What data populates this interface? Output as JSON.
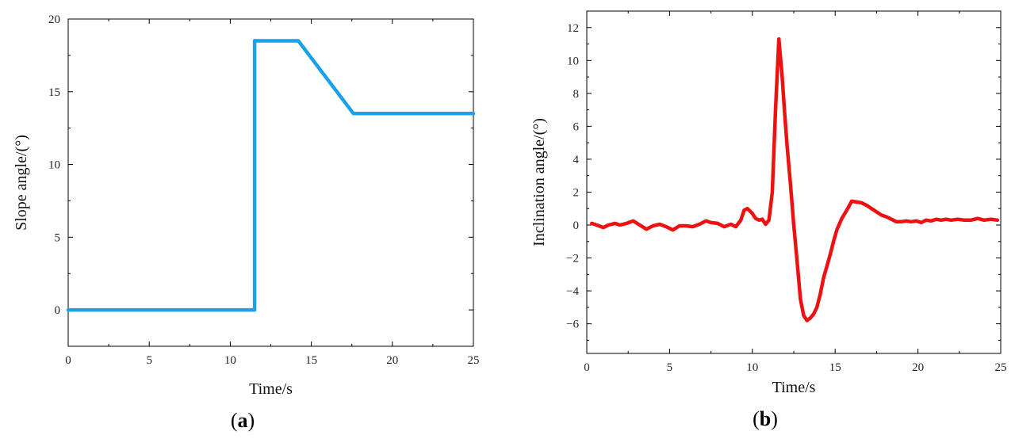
{
  "chart_data": [
    {
      "type": "line",
      "panel_label": "a",
      "xlabel": "Time/s",
      "ylabel": "Slope angle/(°)",
      "xlim": [
        0,
        25
      ],
      "ylim": [
        -2.5,
        20
      ],
      "xticks": [
        0,
        5,
        10,
        15,
        20,
        25
      ],
      "yticks": [
        0,
        5,
        10,
        15,
        20
      ],
      "color": "#1ba1ea",
      "grid": false,
      "series": [
        {
          "x": [
            0,
            11.5,
            11.5,
            14.2,
            17.6,
            25
          ],
          "y": [
            0,
            0,
            18.5,
            18.5,
            13.5,
            13.5
          ]
        }
      ]
    },
    {
      "type": "line",
      "panel_label": "b",
      "xlabel": "Time/s",
      "ylabel": "Inclination angle/(°)",
      "xlim": [
        0,
        25
      ],
      "ylim": [
        -7.8,
        13
      ],
      "xticks": [
        0,
        5,
        10,
        15,
        20,
        25
      ],
      "yticks": [
        -6,
        -4,
        -2,
        0,
        2,
        4,
        6,
        8,
        10,
        12
      ],
      "ytick_labels": [
        "−6",
        "−4",
        "−2",
        "0",
        "2",
        "4",
        "6",
        "8",
        "10",
        "12"
      ],
      "color": "#ee1111",
      "grid": false,
      "series": [
        {
          "x": [
            0.3,
            0.6,
            1.0,
            1.3,
            1.7,
            2.0,
            2.4,
            2.8,
            3.2,
            3.6,
            4.0,
            4.4,
            4.8,
            5.2,
            5.6,
            6.0,
            6.4,
            6.8,
            7.2,
            7.5,
            7.9,
            8.3,
            8.7,
            9.0,
            9.3,
            9.5,
            9.7,
            9.85,
            10.0,
            10.2,
            10.4,
            10.6,
            10.8,
            11.0,
            11.2,
            11.4,
            11.6,
            11.8,
            11.95,
            12.1,
            12.3,
            12.5,
            12.7,
            12.9,
            13.1,
            13.3,
            13.5,
            13.7,
            13.9,
            14.1,
            14.3,
            14.5,
            14.7,
            14.9,
            15.1,
            15.4,
            15.7,
            16.0,
            16.3,
            16.6,
            16.9,
            17.2,
            17.5,
            17.8,
            18.1,
            18.4,
            18.7,
            19.0,
            19.3,
            19.6,
            19.9,
            20.2,
            20.5,
            20.8,
            21.1,
            21.4,
            21.7,
            22.0,
            22.4,
            22.8,
            23.2,
            23.6,
            24.0,
            24.4,
            24.8
          ],
          "y": [
            0.1,
            0.0,
            -0.15,
            0.0,
            0.1,
            0.0,
            0.1,
            0.25,
            0.0,
            -0.25,
            -0.05,
            0.05,
            -0.1,
            -0.3,
            -0.05,
            -0.05,
            -0.1,
            0.05,
            0.25,
            0.15,
            0.1,
            -0.1,
            0.05,
            -0.1,
            0.3,
            0.9,
            1.0,
            0.85,
            0.7,
            0.4,
            0.3,
            0.35,
            0.05,
            0.3,
            2.0,
            7.0,
            11.3,
            9.0,
            6.8,
            4.8,
            2.5,
            0.0,
            -2.2,
            -4.5,
            -5.5,
            -5.8,
            -5.65,
            -5.4,
            -5.0,
            -4.2,
            -3.2,
            -2.5,
            -1.8,
            -1.0,
            -0.3,
            0.4,
            0.9,
            1.45,
            1.4,
            1.35,
            1.2,
            1.0,
            0.8,
            0.6,
            0.5,
            0.35,
            0.2,
            0.2,
            0.25,
            0.2,
            0.25,
            0.15,
            0.3,
            0.25,
            0.35,
            0.3,
            0.35,
            0.3,
            0.35,
            0.3,
            0.3,
            0.4,
            0.3,
            0.35,
            0.3
          ]
        }
      ]
    }
  ]
}
